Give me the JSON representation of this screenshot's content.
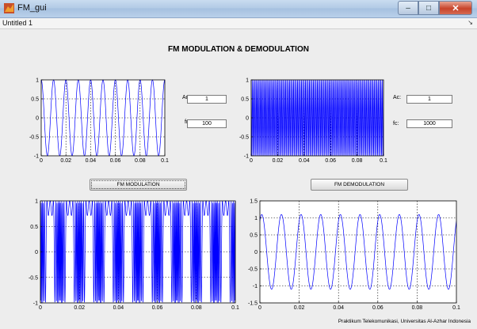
{
  "window": {
    "title": "FM_gui",
    "min_glyph": "–",
    "max_glyph": "□",
    "close_glyph": "✕"
  },
  "document": {
    "tab": "Untitled 1",
    "tab_menu_glyph": "↘"
  },
  "header": {
    "title": "FM MODULATION & DEMODULATION"
  },
  "inputs": {
    "am": {
      "label": "Am:",
      "value": "1"
    },
    "fm": {
      "label": "fm:",
      "value": "100"
    },
    "ac": {
      "label": "Ac:",
      "value": "1"
    },
    "fc": {
      "label": "fc:",
      "value": "1000"
    }
  },
  "buttons": {
    "modulation": "FM MODULATION",
    "demodulation": "FM DEMODULATION"
  },
  "footer": {
    "text": "Praktikum Telekomunikasi, Universitas Al-Azhar Indonesia"
  },
  "colors": {
    "trace": "#0000ff",
    "axes_bg": "#ffffff",
    "grid": "#000000"
  },
  "chart_data": [
    {
      "id": "message",
      "type": "line",
      "series": [
        {
          "function": "Am*cos(2*pi*fm*t)",
          "params": {
            "Am": 1,
            "fm": 100
          }
        }
      ],
      "xlim": [
        0,
        0.1
      ],
      "ylim": [
        -1,
        1
      ],
      "xticks": [
        0,
        0.02,
        0.04,
        0.06,
        0.08,
        0.1
      ],
      "yticks": [
        -1,
        -0.5,
        0,
        0.5,
        1
      ],
      "xtick_labels": [
        "0",
        "0.02",
        "0.04",
        "0.06",
        "0.08",
        "0.1"
      ],
      "ytick_labels": [
        "-1",
        "-0.5",
        "0",
        "0.5",
        "1"
      ],
      "grid": true
    },
    {
      "id": "carrier",
      "type": "line",
      "series": [
        {
          "function": "Ac*cos(2*pi*fc*t)",
          "params": {
            "Ac": 1,
            "fc": 1000
          }
        }
      ],
      "xlim": [
        0,
        0.1
      ],
      "ylim": [
        -1,
        1
      ],
      "xticks": [
        0,
        0.02,
        0.04,
        0.06,
        0.08,
        0.1
      ],
      "yticks": [
        -1,
        -0.5,
        0,
        0.5,
        1
      ],
      "xtick_labels": [
        "0",
        "0.02",
        "0.04",
        "0.06",
        "0.08",
        "0.1"
      ],
      "ytick_labels": [
        "-1",
        "-0.5",
        "0",
        "0.5",
        "1"
      ],
      "grid": true
    },
    {
      "id": "modulated",
      "type": "line",
      "series": [
        {
          "function": "FM modulated signal, unit amplitude"
        }
      ],
      "xlim": [
        0,
        0.1
      ],
      "ylim": [
        -1,
        1
      ],
      "xticks": [
        0,
        0.02,
        0.04,
        0.06,
        0.08,
        0.1
      ],
      "yticks": [
        -1,
        -0.5,
        0,
        0.5,
        1
      ],
      "xtick_labels": [
        "0",
        "0.02",
        "0.04",
        "0.06",
        "0.08",
        "0.1"
      ],
      "ytick_labels": [
        "-1",
        "-0.5",
        "0",
        "0.5",
        "1"
      ],
      "grid": true
    },
    {
      "id": "demodulated",
      "type": "line",
      "series": [
        {
          "function": "recovered message, 100 Hz, amplitude about 1.1"
        }
      ],
      "xlim": [
        0,
        0.1
      ],
      "ylim": [
        -1.5,
        1.5
      ],
      "xticks": [
        0,
        0.02,
        0.04,
        0.06,
        0.08,
        0.1
      ],
      "yticks": [
        -1.5,
        -1,
        -0.5,
        0,
        0.5,
        1,
        1.5
      ],
      "xtick_labels": [
        "0",
        "0.02",
        "0.04",
        "0.06",
        "0.08",
        "0.1"
      ],
      "ytick_labels": [
        "-1.5",
        "-1",
        "-0.5",
        "0",
        "0.5",
        "1",
        "1.5"
      ],
      "grid": true
    }
  ]
}
